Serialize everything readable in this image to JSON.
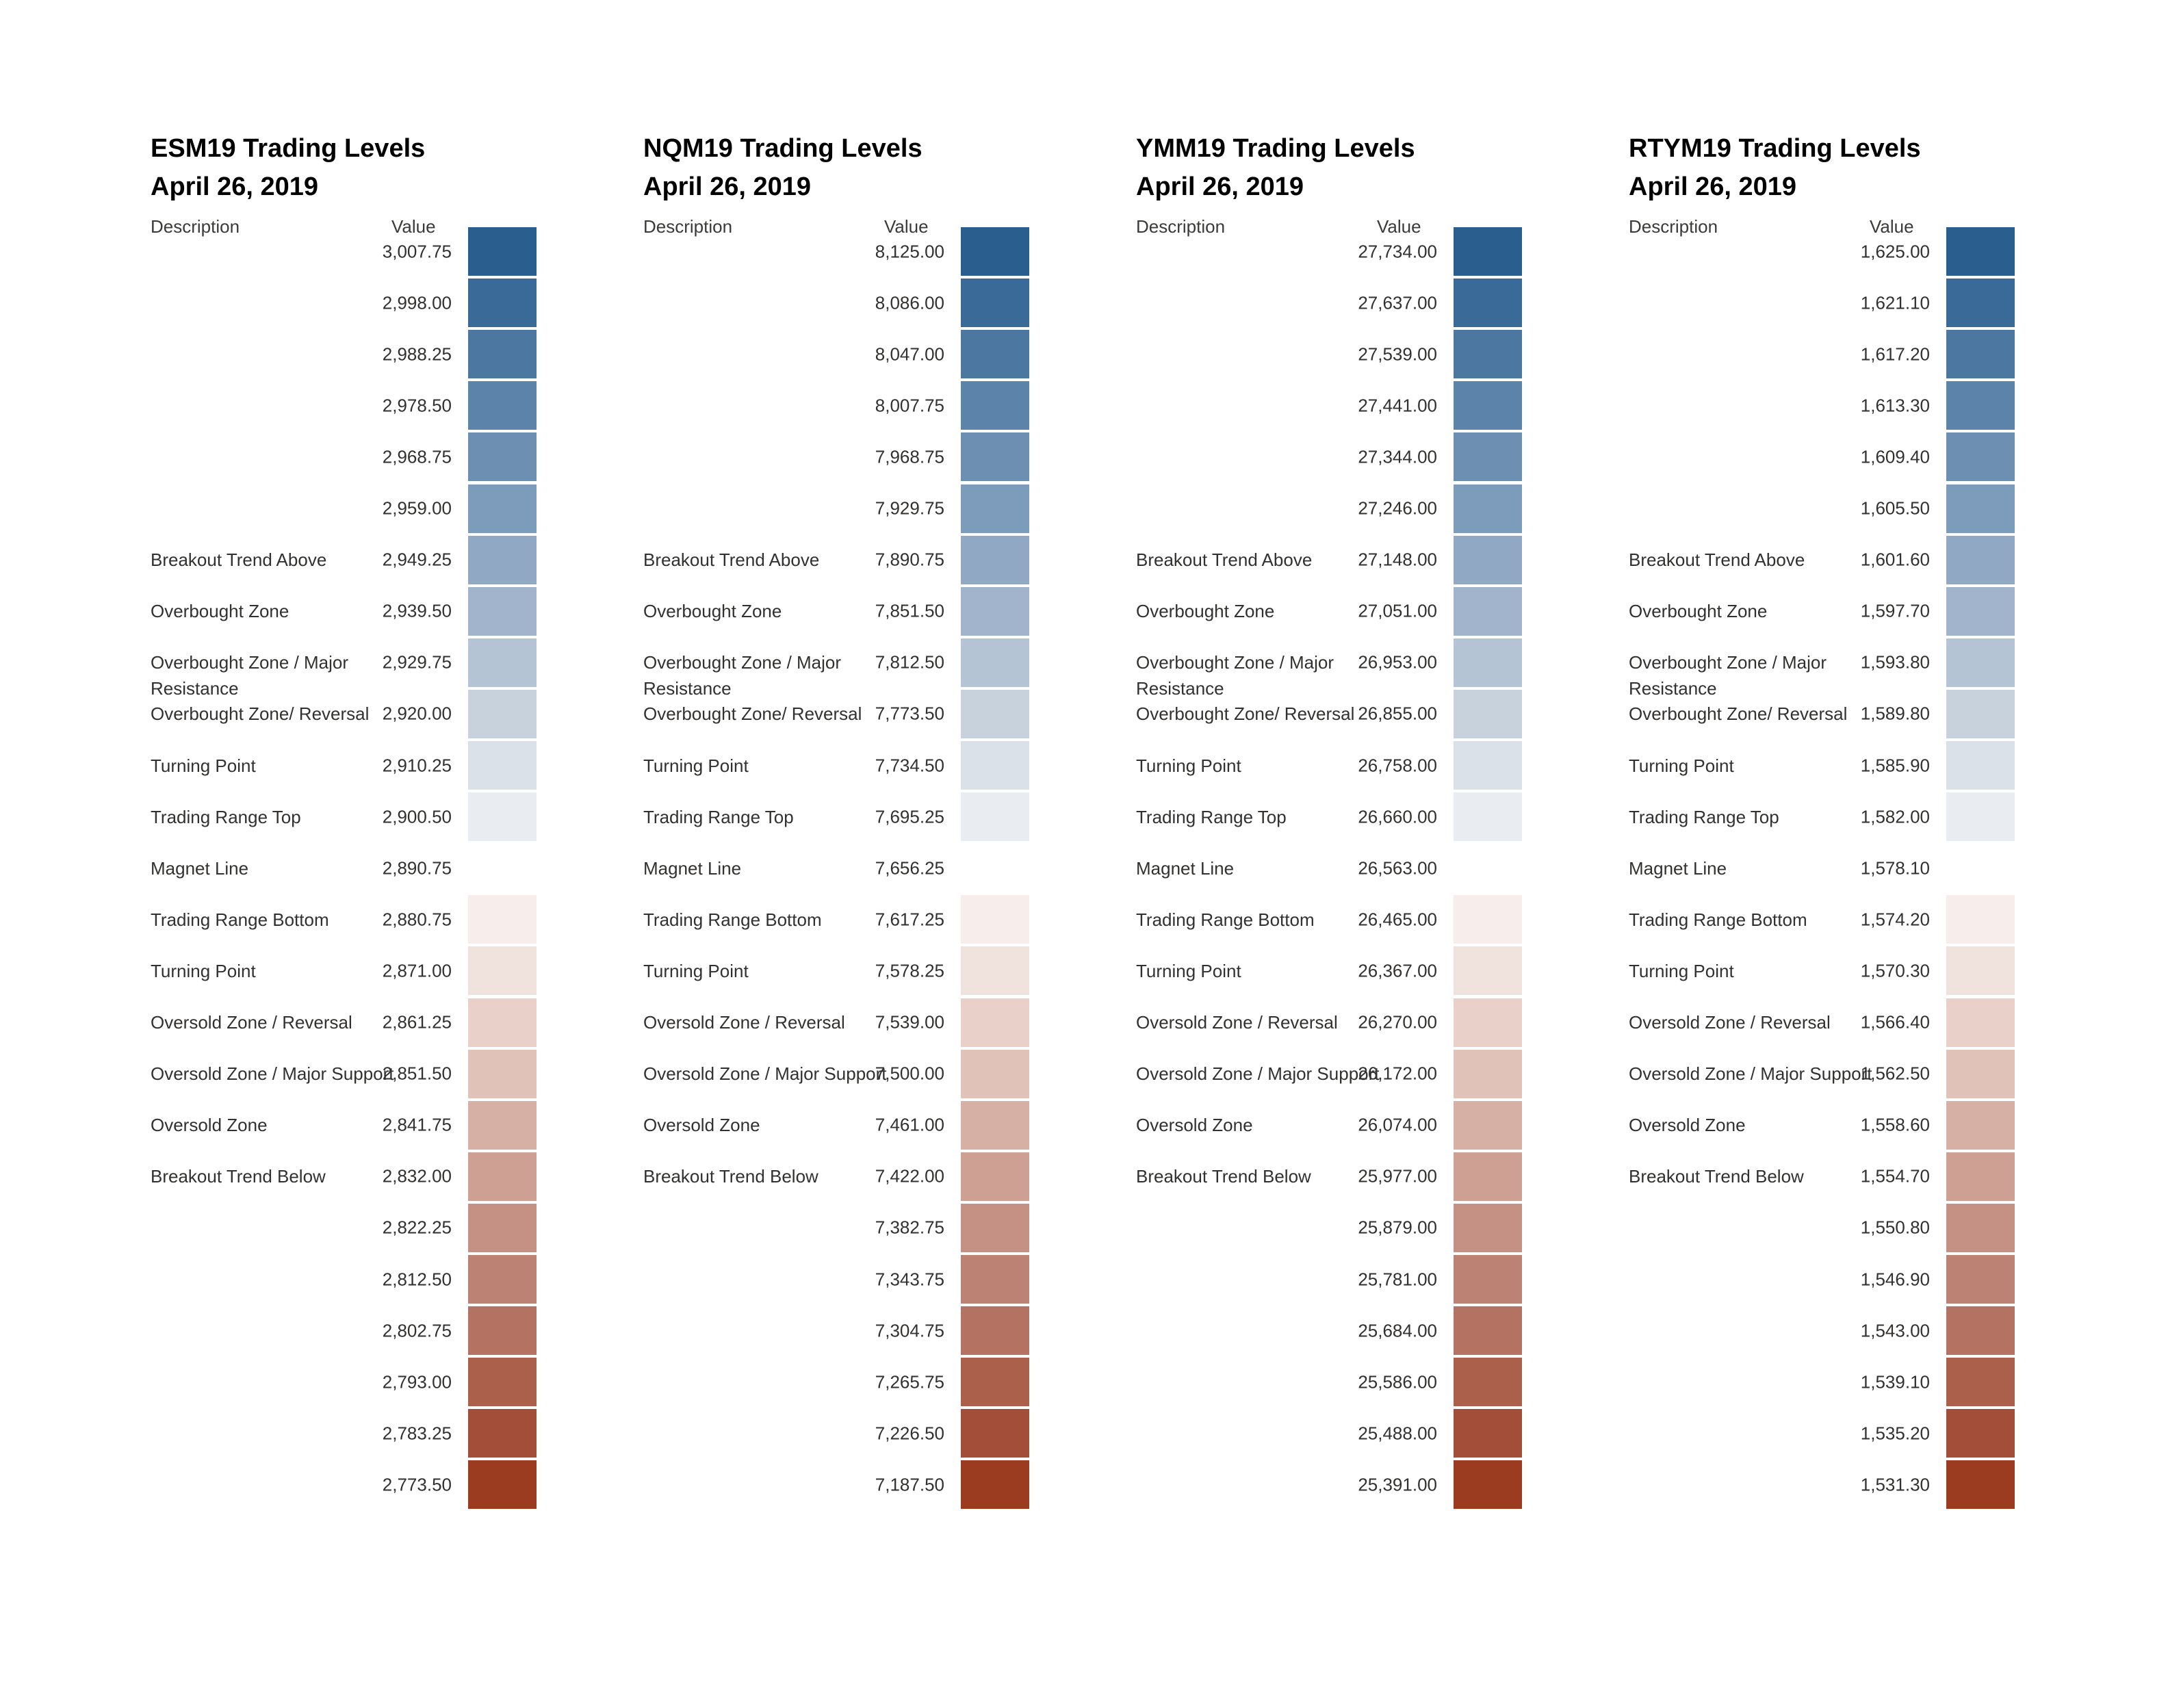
{
  "report": {
    "background": "#ffffff",
    "text_color": "#323130",
    "title_color": "#000000",
    "header_color": "#3a3a38"
  },
  "palette": {
    "row_colors": [
      "#2A5E8E",
      "#3A6A97",
      "#4C77A0",
      "#5C83A9",
      "#6C8FB2",
      "#7D9BBA",
      "#90A8C3",
      "#A1B4CB",
      "#B5C4D4",
      "#C7D2DD",
      "#DAE1E9",
      "#E9EDF2",
      null,
      "#F7EEEB",
      "#F0E2DD",
      "#E9D1CA",
      "#E0C2B8",
      "#D7B0A5",
      "#CEA094",
      "#C59184",
      "#BC8273",
      "#B47262",
      "#AB604C",
      "#A34E38",
      "#9B3C21"
    ]
  },
  "chart_data": [
    {
      "type": "table",
      "title": "ESM19 Trading Levels",
      "subtitle": "April 26, 2019",
      "columns": [
        "Description",
        "Value"
      ],
      "rows": [
        {
          "description": "",
          "value": "3,007.75"
        },
        {
          "description": "",
          "value": "2,998.00"
        },
        {
          "description": "",
          "value": "2,988.25"
        },
        {
          "description": "",
          "value": "2,978.50"
        },
        {
          "description": "",
          "value": "2,968.75"
        },
        {
          "description": "",
          "value": "2,959.00"
        },
        {
          "description": "Breakout Trend Above",
          "value": "2,949.25"
        },
        {
          "description": "Overbought Zone",
          "value": "2,939.50"
        },
        {
          "description": "Overbought Zone / Major Resistance",
          "value": "2,929.75"
        },
        {
          "description": "Overbought Zone/ Reversal",
          "value": "2,920.00"
        },
        {
          "description": "Turning Point",
          "value": "2,910.25"
        },
        {
          "description": "Trading Range Top",
          "value": "2,900.50"
        },
        {
          "description": "Magnet Line",
          "value": "2,890.75"
        },
        {
          "description": "Trading Range Bottom",
          "value": "2,880.75"
        },
        {
          "description": "Turning Point",
          "value": "2,871.00"
        },
        {
          "description": "Oversold Zone / Reversal",
          "value": "2,861.25"
        },
        {
          "description": "Oversold Zone / Major Support",
          "value": "2,851.50"
        },
        {
          "description": "Oversold Zone",
          "value": "2,841.75"
        },
        {
          "description": "Breakout Trend Below",
          "value": "2,832.00"
        },
        {
          "description": "",
          "value": "2,822.25"
        },
        {
          "description": "",
          "value": "2,812.50"
        },
        {
          "description": "",
          "value": "2,802.75"
        },
        {
          "description": "",
          "value": "2,793.00"
        },
        {
          "description": "",
          "value": "2,783.25"
        },
        {
          "description": "",
          "value": "2,773.50"
        }
      ]
    },
    {
      "type": "table",
      "title": "NQM19 Trading Levels",
      "subtitle": "April 26, 2019",
      "columns": [
        "Description",
        "Value"
      ],
      "rows": [
        {
          "description": "",
          "value": "8,125.00"
        },
        {
          "description": "",
          "value": "8,086.00"
        },
        {
          "description": "",
          "value": "8,047.00"
        },
        {
          "description": "",
          "value": "8,007.75"
        },
        {
          "description": "",
          "value": "7,968.75"
        },
        {
          "description": "",
          "value": "7,929.75"
        },
        {
          "description": "Breakout Trend Above",
          "value": "7,890.75"
        },
        {
          "description": "Overbought Zone",
          "value": "7,851.50"
        },
        {
          "description": "Overbought Zone / Major Resistance",
          "value": "7,812.50"
        },
        {
          "description": "Overbought Zone/ Reversal",
          "value": "7,773.50"
        },
        {
          "description": "Turning Point",
          "value": "7,734.50"
        },
        {
          "description": "Trading Range Top",
          "value": "7,695.25"
        },
        {
          "description": "Magnet Line",
          "value": "7,656.25"
        },
        {
          "description": "Trading Range Bottom",
          "value": "7,617.25"
        },
        {
          "description": "Turning Point",
          "value": "7,578.25"
        },
        {
          "description": "Oversold Zone / Reversal",
          "value": "7,539.00"
        },
        {
          "description": "Oversold Zone / Major Support",
          "value": "7,500.00"
        },
        {
          "description": "Oversold Zone",
          "value": "7,461.00"
        },
        {
          "description": "Breakout Trend Below",
          "value": "7,422.00"
        },
        {
          "description": "",
          "value": "7,382.75"
        },
        {
          "description": "",
          "value": "7,343.75"
        },
        {
          "description": "",
          "value": "7,304.75"
        },
        {
          "description": "",
          "value": "7,265.75"
        },
        {
          "description": "",
          "value": "7,226.50"
        },
        {
          "description": "",
          "value": "7,187.50"
        }
      ]
    },
    {
      "type": "table",
      "title": "YMM19 Trading Levels",
      "subtitle": "April 26, 2019",
      "columns": [
        "Description",
        "Value"
      ],
      "rows": [
        {
          "description": "",
          "value": "27,734.00"
        },
        {
          "description": "",
          "value": "27,637.00"
        },
        {
          "description": "",
          "value": "27,539.00"
        },
        {
          "description": "",
          "value": "27,441.00"
        },
        {
          "description": "",
          "value": "27,344.00"
        },
        {
          "description": "",
          "value": "27,246.00"
        },
        {
          "description": "Breakout Trend Above",
          "value": "27,148.00"
        },
        {
          "description": "Overbought Zone",
          "value": "27,051.00"
        },
        {
          "description": "Overbought Zone / Major Resistance",
          "value": "26,953.00"
        },
        {
          "description": "Overbought Zone/ Reversal",
          "value": "26,855.00"
        },
        {
          "description": "Turning Point",
          "value": "26,758.00"
        },
        {
          "description": "Trading Range Top",
          "value": "26,660.00"
        },
        {
          "description": "Magnet Line",
          "value": "26,563.00"
        },
        {
          "description": "Trading Range Bottom",
          "value": "26,465.00"
        },
        {
          "description": "Turning Point",
          "value": "26,367.00"
        },
        {
          "description": "Oversold Zone / Reversal",
          "value": "26,270.00"
        },
        {
          "description": "Oversold Zone / Major Support",
          "value": "26,172.00"
        },
        {
          "description": "Oversold Zone",
          "value": "26,074.00"
        },
        {
          "description": "Breakout Trend Below",
          "value": "25,977.00"
        },
        {
          "description": "",
          "value": "25,879.00"
        },
        {
          "description": "",
          "value": "25,781.00"
        },
        {
          "description": "",
          "value": "25,684.00"
        },
        {
          "description": "",
          "value": "25,586.00"
        },
        {
          "description": "",
          "value": "25,488.00"
        },
        {
          "description": "",
          "value": "25,391.00"
        }
      ]
    },
    {
      "type": "table",
      "title": "RTYM19 Trading Levels",
      "subtitle": "April 26, 2019",
      "columns": [
        "Description",
        "Value"
      ],
      "rows": [
        {
          "description": "",
          "value": "1,625.00"
        },
        {
          "description": "",
          "value": "1,621.10"
        },
        {
          "description": "",
          "value": "1,617.20"
        },
        {
          "description": "",
          "value": "1,613.30"
        },
        {
          "description": "",
          "value": "1,609.40"
        },
        {
          "description": "",
          "value": "1,605.50"
        },
        {
          "description": "Breakout Trend Above",
          "value": "1,601.60"
        },
        {
          "description": "Overbought Zone",
          "value": "1,597.70"
        },
        {
          "description": "Overbought Zone / Major Resistance",
          "value": "1,593.80"
        },
        {
          "description": "Overbought Zone/ Reversal",
          "value": "1,589.80"
        },
        {
          "description": "Turning Point",
          "value": "1,585.90"
        },
        {
          "description": "Trading Range Top",
          "value": "1,582.00"
        },
        {
          "description": "Magnet Line",
          "value": "1,578.10"
        },
        {
          "description": "Trading Range Bottom",
          "value": "1,574.20"
        },
        {
          "description": "Turning Point",
          "value": "1,570.30"
        },
        {
          "description": "Oversold Zone / Reversal",
          "value": "1,566.40"
        },
        {
          "description": "Oversold Zone / Major Support",
          "value": "1,562.50"
        },
        {
          "description": "Oversold Zone",
          "value": "1,558.60"
        },
        {
          "description": "Breakout Trend Below",
          "value": "1,554.70"
        },
        {
          "description": "",
          "value": "1,550.80"
        },
        {
          "description": "",
          "value": "1,546.90"
        },
        {
          "description": "",
          "value": "1,543.00"
        },
        {
          "description": "",
          "value": "1,539.10"
        },
        {
          "description": "",
          "value": "1,535.20"
        },
        {
          "description": "",
          "value": "1,531.30"
        }
      ]
    }
  ]
}
